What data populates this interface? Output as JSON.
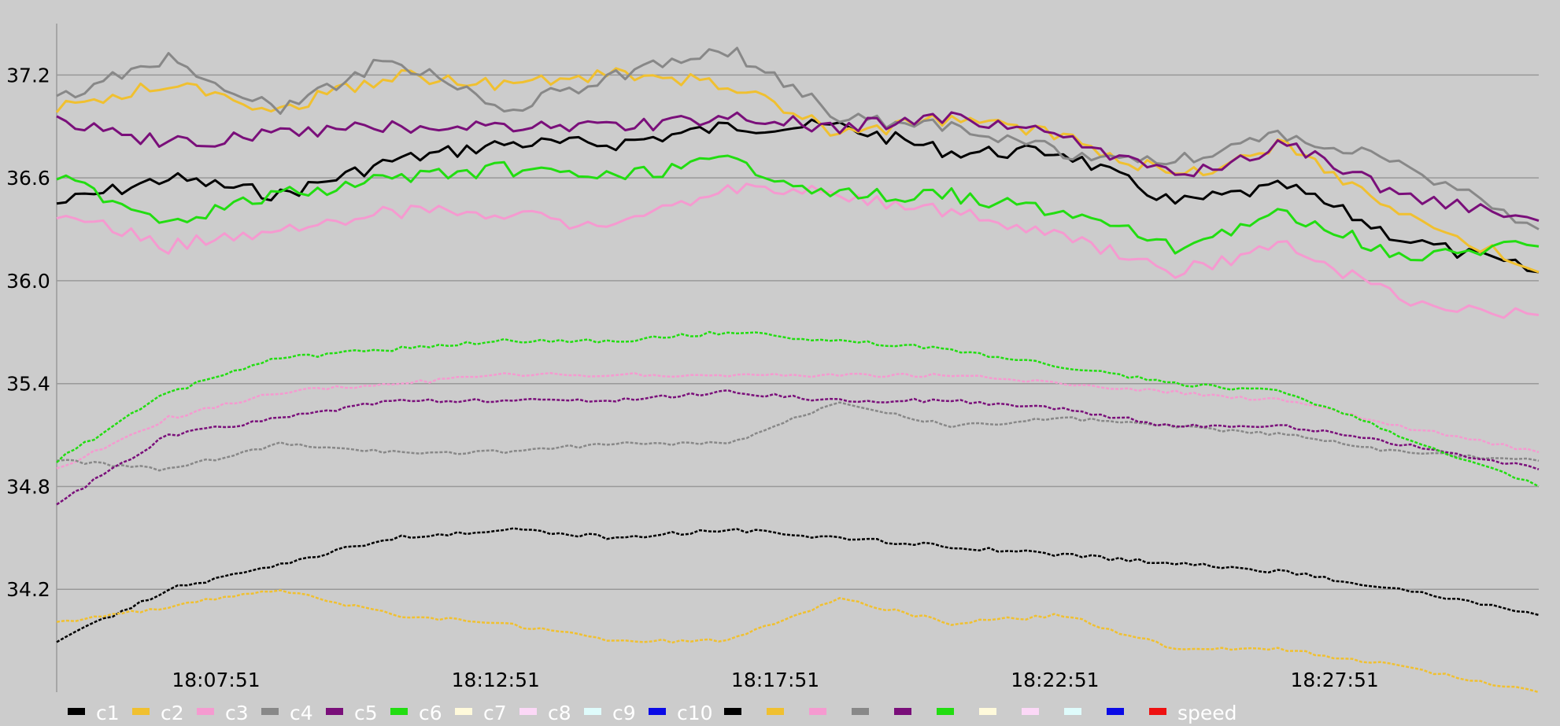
{
  "chart_data": {
    "type": "line",
    "title": "",
    "xlabel": "",
    "ylabel": "",
    "xlim": [
      "18:05:00",
      "18:31:30"
    ],
    "ylim": [
      33.6,
      37.5
    ],
    "x_ticks": [
      "18:07:51",
      "18:12:51",
      "18:17:51",
      "18:22:51",
      "18:27:51"
    ],
    "y_ticks": [
      34.2,
      34.8,
      35.4,
      36.0,
      36.6,
      37.2
    ],
    "y_tick_labels": [
      "34.2",
      "34.8",
      "35.4",
      "36.0",
      "36.6",
      "37.2"
    ],
    "grid": "horizontal",
    "legend_position": "bottom",
    "x": [
      "18:05:00",
      "18:07:00",
      "18:09:00",
      "18:11:00",
      "18:13:00",
      "18:15:00",
      "18:17:00",
      "18:19:00",
      "18:21:00",
      "18:23:00",
      "18:25:00",
      "18:27:00",
      "18:29:00",
      "18:31:30"
    ],
    "series": [
      {
        "name": "c1",
        "color": "#000000",
        "style": "solid",
        "values": [
          36.45,
          36.6,
          36.5,
          36.7,
          36.8,
          36.8,
          36.9,
          36.9,
          36.75,
          36.75,
          36.45,
          36.55,
          36.25,
          36.05
        ]
      },
      {
        "name": "c2",
        "color": "#f0c030",
        "style": "solid",
        "values": [
          37.0,
          37.15,
          37.0,
          37.2,
          37.15,
          37.2,
          37.15,
          36.85,
          36.95,
          36.85,
          36.6,
          36.8,
          36.4,
          36.05
        ]
      },
      {
        "name": "c3",
        "color": "#f59ad0",
        "style": "solid",
        "values": [
          36.4,
          36.2,
          36.3,
          36.4,
          36.4,
          36.3,
          36.55,
          36.5,
          36.4,
          36.25,
          36.05,
          36.2,
          35.9,
          35.8
        ]
      },
      {
        "name": "c4",
        "color": "#888888",
        "style": "solid",
        "values": [
          37.05,
          37.3,
          37.0,
          37.3,
          37.0,
          37.2,
          37.35,
          36.95,
          36.9,
          36.75,
          36.7,
          36.85,
          36.7,
          36.3
        ]
      },
      {
        "name": "c5",
        "color": "#7a0f7a",
        "style": "solid",
        "values": [
          36.95,
          36.8,
          36.85,
          36.9,
          36.9,
          36.9,
          36.95,
          36.9,
          36.95,
          36.85,
          36.6,
          36.8,
          36.5,
          36.35
        ]
      },
      {
        "name": "c6",
        "color": "#22dd11",
        "style": "solid",
        "values": [
          36.6,
          36.35,
          36.5,
          36.6,
          36.65,
          36.6,
          36.7,
          36.5,
          36.5,
          36.4,
          36.2,
          36.4,
          36.15,
          36.2
        ]
      },
      {
        "name": "c1",
        "color": "#000000",
        "style": "dashed",
        "values": [
          33.9,
          34.2,
          34.35,
          34.5,
          34.55,
          34.5,
          34.55,
          34.5,
          34.45,
          34.4,
          34.35,
          34.3,
          34.2,
          34.05
        ]
      },
      {
        "name": "c2",
        "color": "#f0c030",
        "style": "dashed",
        "values": [
          34.0,
          34.1,
          34.2,
          34.05,
          34.0,
          33.9,
          33.9,
          34.15,
          34.0,
          34.05,
          33.85,
          33.85,
          33.75,
          33.6
        ]
      },
      {
        "name": "c3",
        "color": "#f59ad0",
        "style": "dashed",
        "values": [
          34.9,
          35.2,
          35.35,
          35.4,
          35.45,
          35.45,
          35.45,
          35.45,
          35.45,
          35.4,
          35.35,
          35.3,
          35.15,
          35.0
        ]
      },
      {
        "name": "c4",
        "color": "#888888",
        "style": "dashed",
        "values": [
          34.95,
          34.9,
          35.05,
          35.0,
          35.0,
          35.05,
          35.05,
          35.3,
          35.15,
          35.2,
          35.15,
          35.1,
          35.0,
          34.95
        ]
      },
      {
        "name": "c5",
        "color": "#7a0f7a",
        "style": "dashed",
        "values": [
          34.7,
          35.1,
          35.2,
          35.3,
          35.3,
          35.3,
          35.35,
          35.3,
          35.3,
          35.25,
          35.15,
          35.15,
          35.05,
          34.9
        ]
      },
      {
        "name": "c6",
        "color": "#22dd11",
        "style": "dashed",
        "values": [
          34.95,
          35.35,
          35.55,
          35.6,
          35.65,
          35.65,
          35.7,
          35.65,
          35.6,
          35.5,
          35.4,
          35.35,
          35.1,
          34.8
        ]
      }
    ],
    "legend": [
      {
        "label": "c1",
        "color": "#000000"
      },
      {
        "label": "c2",
        "color": "#f0c030"
      },
      {
        "label": "c3",
        "color": "#f59ad0"
      },
      {
        "label": "c4",
        "color": "#888888"
      },
      {
        "label": "c5",
        "color": "#7a0f7a"
      },
      {
        "label": "c6",
        "color": "#22dd11"
      },
      {
        "label": "c7",
        "color": "#fffadb"
      },
      {
        "label": "c8",
        "color": "#fcd8f7"
      },
      {
        "label": "c9",
        "color": "#dffcfc"
      },
      {
        "label": "c10",
        "color": "#0a0ae6"
      },
      {
        "label": "",
        "color": "#000000"
      },
      {
        "label": "",
        "color": "#f0c030"
      },
      {
        "label": "",
        "color": "#f59ad0"
      },
      {
        "label": "",
        "color": "#888888"
      },
      {
        "label": "",
        "color": "#7a0f7a"
      },
      {
        "label": "",
        "color": "#22dd11"
      },
      {
        "label": "",
        "color": "#fffadb"
      },
      {
        "label": "",
        "color": "#fcd8f7"
      },
      {
        "label": "",
        "color": "#dffcfc"
      },
      {
        "label": "",
        "color": "#0a0ae6"
      },
      {
        "label": "speed",
        "color": "#ee1111"
      }
    ]
  }
}
